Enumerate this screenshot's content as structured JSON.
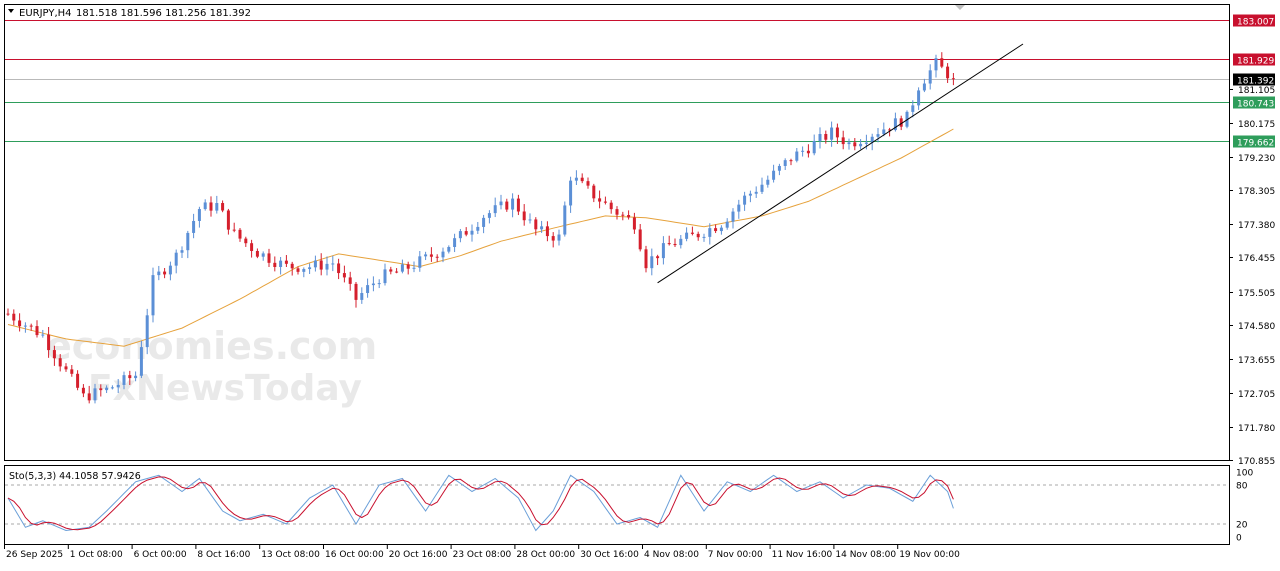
{
  "header": {
    "symbol": "EURJPY,H4",
    "ohlc": "181.518 181.596 181.256 181.392"
  },
  "watermark": {
    "brand": "economies.com",
    "line2": "FxNewsToday"
  },
  "price_axis": {
    "ticks": [
      "181.105",
      "180.175",
      "179.230",
      "178.305",
      "177.380",
      "176.455",
      "175.505",
      "174.580",
      "173.655",
      "172.705",
      "171.780",
      "170.855"
    ]
  },
  "levels": [
    {
      "label": "183.007",
      "color": "#c8102e"
    },
    {
      "label": "181.929",
      "color": "#c8102e"
    },
    {
      "label": "181.392",
      "color": "#000000"
    },
    {
      "label": "180.743",
      "color": "#2e9d5b"
    },
    {
      "label": "179.662",
      "color": "#2e9d5b"
    }
  ],
  "time_axis": {
    "labels": [
      "26 Sep 2025",
      "1 Oct 08:00",
      "6 Oct 00:00",
      "8 Oct 16:00",
      "13 Oct 08:00",
      "16 Oct 00:00",
      "20 Oct 16:00",
      "23 Oct 08:00",
      "28 Oct 00:00",
      "30 Oct 16:00",
      "4 Nov 08:00",
      "7 Nov 00:00",
      "11 Nov 16:00",
      "14 Nov 08:00",
      "19 Nov 00:00"
    ]
  },
  "oscillator": {
    "label": "Sto(5,3,3) 44.1058 57.9426",
    "ticks": [
      "100",
      "80",
      "20",
      "0"
    ]
  },
  "colors": {
    "up": "#5b8fd6",
    "down": "#d51f2c",
    "ma": "#e6a23c",
    "resistance": "#c8102e",
    "support": "#2e9d5b",
    "trendline": "#000000",
    "stoch_main": "#6a9fd8",
    "stoch_signal": "#c8102e"
  },
  "chart_data": {
    "type": "candlestick",
    "symbol": "EURJPY",
    "timeframe": "H4",
    "ylim": [
      170.855,
      183.4
    ],
    "anchors": [
      {
        "x": 0,
        "y": 174.9
      },
      {
        "x": 6,
        "y": 174.3
      },
      {
        "x": 10,
        "y": 173.3
      },
      {
        "x": 13,
        "y": 172.6
      },
      {
        "x": 17,
        "y": 172.8
      },
      {
        "x": 22,
        "y": 173.2
      },
      {
        "x": 25,
        "y": 175.8
      },
      {
        "x": 29,
        "y": 176.5
      },
      {
        "x": 33,
        "y": 177.8
      },
      {
        "x": 36,
        "y": 177.9
      },
      {
        "x": 39,
        "y": 177.1
      },
      {
        "x": 43,
        "y": 176.6
      },
      {
        "x": 48,
        "y": 176.2
      },
      {
        "x": 52,
        "y": 176.2
      },
      {
        "x": 56,
        "y": 176.3
      },
      {
        "x": 60,
        "y": 175.3
      },
      {
        "x": 64,
        "y": 175.9
      },
      {
        "x": 68,
        "y": 176.1
      },
      {
        "x": 73,
        "y": 176.5
      },
      {
        "x": 77,
        "y": 176.9
      },
      {
        "x": 82,
        "y": 177.6
      },
      {
        "x": 87,
        "y": 178.0
      },
      {
        "x": 91,
        "y": 177.2
      },
      {
        "x": 95,
        "y": 177.0
      },
      {
        "x": 97,
        "y": 178.7
      },
      {
        "x": 100,
        "y": 178.3
      },
      {
        "x": 104,
        "y": 177.8
      },
      {
        "x": 108,
        "y": 177.4
      },
      {
        "x": 110,
        "y": 176.3
      },
      {
        "x": 114,
        "y": 176.8
      },
      {
        "x": 119,
        "y": 177.1
      },
      {
        "x": 123,
        "y": 177.4
      },
      {
        "x": 127,
        "y": 178.1
      },
      {
        "x": 131,
        "y": 178.6
      },
      {
        "x": 135,
        "y": 179.2
      },
      {
        "x": 139,
        "y": 179.6
      },
      {
        "x": 142,
        "y": 179.9
      },
      {
        "x": 145,
        "y": 179.6
      },
      {
        "x": 148,
        "y": 179.8
      },
      {
        "x": 152,
        "y": 180.1
      },
      {
        "x": 155,
        "y": 180.3
      },
      {
        "x": 157,
        "y": 181.2
      },
      {
        "x": 160,
        "y": 181.8
      },
      {
        "x": 163,
        "y": 181.4
      }
    ],
    "moving_average": [
      {
        "x": 0,
        "y": 174.6
      },
      {
        "x": 10,
        "y": 174.2
      },
      {
        "x": 20,
        "y": 174.0
      },
      {
        "x": 30,
        "y": 174.5
      },
      {
        "x": 40,
        "y": 175.3
      },
      {
        "x": 50,
        "y": 176.2
      },
      {
        "x": 57,
        "y": 176.55
      },
      {
        "x": 63,
        "y": 176.4
      },
      {
        "x": 71,
        "y": 176.2
      },
      {
        "x": 78,
        "y": 176.5
      },
      {
        "x": 85,
        "y": 176.9
      },
      {
        "x": 95,
        "y": 177.3
      },
      {
        "x": 103,
        "y": 177.6
      },
      {
        "x": 110,
        "y": 177.55
      },
      {
        "x": 120,
        "y": 177.3
      },
      {
        "x": 130,
        "y": 177.6
      },
      {
        "x": 138,
        "y": 178.0
      },
      {
        "x": 146,
        "y": 178.6
      },
      {
        "x": 154,
        "y": 179.2
      },
      {
        "x": 163,
        "y": 180.0
      }
    ],
    "trendline": [
      {
        "x": 112,
        "y": 175.75
      },
      {
        "x": 175,
        "y": 182.35
      }
    ],
    "horizontal_levels": [
      183.007,
      181.929,
      181.392,
      180.743,
      179.662
    ],
    "oscillator": {
      "name": "Sto(5,3,3)",
      "values": [
        44.1058,
        57.9426
      ],
      "main_anchors": [
        {
          "x": 0,
          "y": 60
        },
        {
          "x": 3,
          "y": 15
        },
        {
          "x": 6,
          "y": 25
        },
        {
          "x": 10,
          "y": 10
        },
        {
          "x": 14,
          "y": 15
        },
        {
          "x": 17,
          "y": 40
        },
        {
          "x": 22,
          "y": 85
        },
        {
          "x": 26,
          "y": 95
        },
        {
          "x": 30,
          "y": 70
        },
        {
          "x": 33,
          "y": 90
        },
        {
          "x": 37,
          "y": 40
        },
        {
          "x": 40,
          "y": 25
        },
        {
          "x": 44,
          "y": 35
        },
        {
          "x": 48,
          "y": 20
        },
        {
          "x": 52,
          "y": 60
        },
        {
          "x": 56,
          "y": 80
        },
        {
          "x": 60,
          "y": 20
        },
        {
          "x": 64,
          "y": 80
        },
        {
          "x": 68,
          "y": 90
        },
        {
          "x": 72,
          "y": 40
        },
        {
          "x": 76,
          "y": 95
        },
        {
          "x": 80,
          "y": 70
        },
        {
          "x": 84,
          "y": 90
        },
        {
          "x": 88,
          "y": 60
        },
        {
          "x": 91,
          "y": 10
        },
        {
          "x": 94,
          "y": 40
        },
        {
          "x": 97,
          "y": 95
        },
        {
          "x": 101,
          "y": 70
        },
        {
          "x": 105,
          "y": 20
        },
        {
          "x": 109,
          "y": 30
        },
        {
          "x": 112,
          "y": 15
        },
        {
          "x": 116,
          "y": 95
        },
        {
          "x": 120,
          "y": 40
        },
        {
          "x": 124,
          "y": 85
        },
        {
          "x": 128,
          "y": 70
        },
        {
          "x": 132,
          "y": 95
        },
        {
          "x": 136,
          "y": 70
        },
        {
          "x": 140,
          "y": 85
        },
        {
          "x": 144,
          "y": 60
        },
        {
          "x": 148,
          "y": 80
        },
        {
          "x": 152,
          "y": 75
        },
        {
          "x": 156,
          "y": 55
        },
        {
          "x": 159,
          "y": 95
        },
        {
          "x": 162,
          "y": 70
        },
        {
          "x": 163,
          "y": 44
        }
      ]
    }
  }
}
